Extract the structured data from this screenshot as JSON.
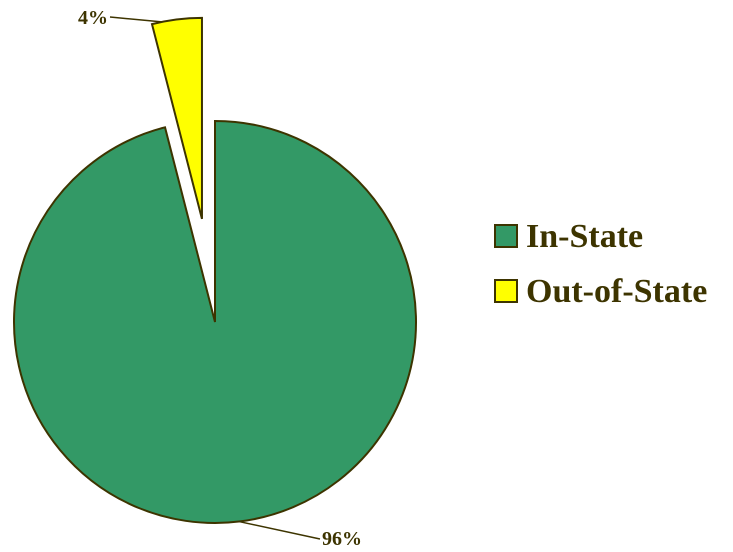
{
  "chart_data": {
    "type": "pie",
    "categories": [
      "In-State",
      "Out-of-State"
    ],
    "values": [
      96,
      4
    ],
    "data_labels": [
      "96%",
      "4%"
    ],
    "colors": [
      "#339966",
      "#ffff00"
    ],
    "outline_color": "#3d3400",
    "exploded_slice": "Out-of-State",
    "legend": {
      "position": "right",
      "entries": [
        "In-State",
        "Out-of-State"
      ]
    }
  }
}
